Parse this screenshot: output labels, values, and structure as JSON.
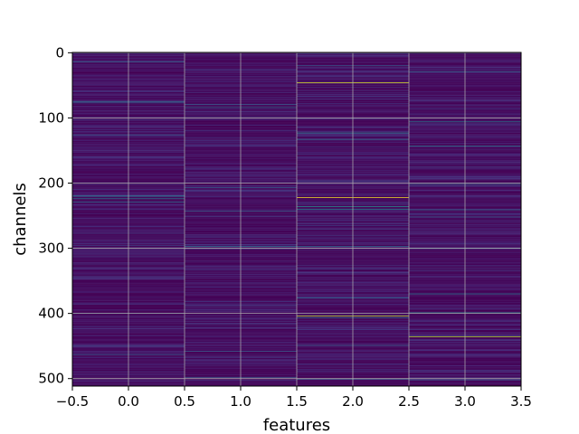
{
  "chart_data": {
    "type": "heatmap",
    "xlabel": "features",
    "ylabel": "channels",
    "x_ticks": [
      "−0.5",
      "0.0",
      "0.5",
      "1.0",
      "1.5",
      "2.0",
      "2.5",
      "3.0",
      "3.5"
    ],
    "y_ticks": [
      "0",
      "100",
      "200",
      "300",
      "400",
      "500"
    ],
    "xlim": [
      -0.5,
      3.5
    ],
    "ylim": [
      511.5,
      -0.5
    ],
    "n_rows": 512,
    "n_columns": 4,
    "grid": true,
    "colormap": "viridis",
    "background_value_range": [
      0.0,
      0.12
    ],
    "highlights": [
      {
        "feature": 0,
        "channels": [
          14,
          75,
          77,
          126,
          220,
          224,
          229,
          400,
          463
        ],
        "values": [
          0.3,
          0.35,
          0.3,
          0.3,
          0.45,
          0.4,
          0.35,
          0.3,
          0.3
        ]
      },
      {
        "feature": 1,
        "channels": [
          79,
          84,
          207,
          243,
          297,
          458,
          498
        ],
        "values": [
          0.3,
          0.35,
          0.3,
          0.3,
          0.35,
          0.3,
          0.3
        ]
      },
      {
        "feature": 2,
        "channels": [
          20,
          46,
          123,
          133,
          222,
          236,
          240,
          297,
          376,
          404,
          407,
          449,
          501
        ],
        "values": [
          0.3,
          0.95,
          0.45,
          0.35,
          1.0,
          0.5,
          0.45,
          0.35,
          0.35,
          0.9,
          0.4,
          0.3,
          0.3
        ]
      },
      {
        "feature": 3,
        "channels": [
          29,
          106,
          143,
          202,
          241,
          252,
          300,
          370,
          399,
          436,
          502
        ],
        "values": [
          0.35,
          0.4,
          0.4,
          0.3,
          0.35,
          0.3,
          0.35,
          0.4,
          0.45,
          0.9,
          0.3
        ]
      }
    ]
  }
}
